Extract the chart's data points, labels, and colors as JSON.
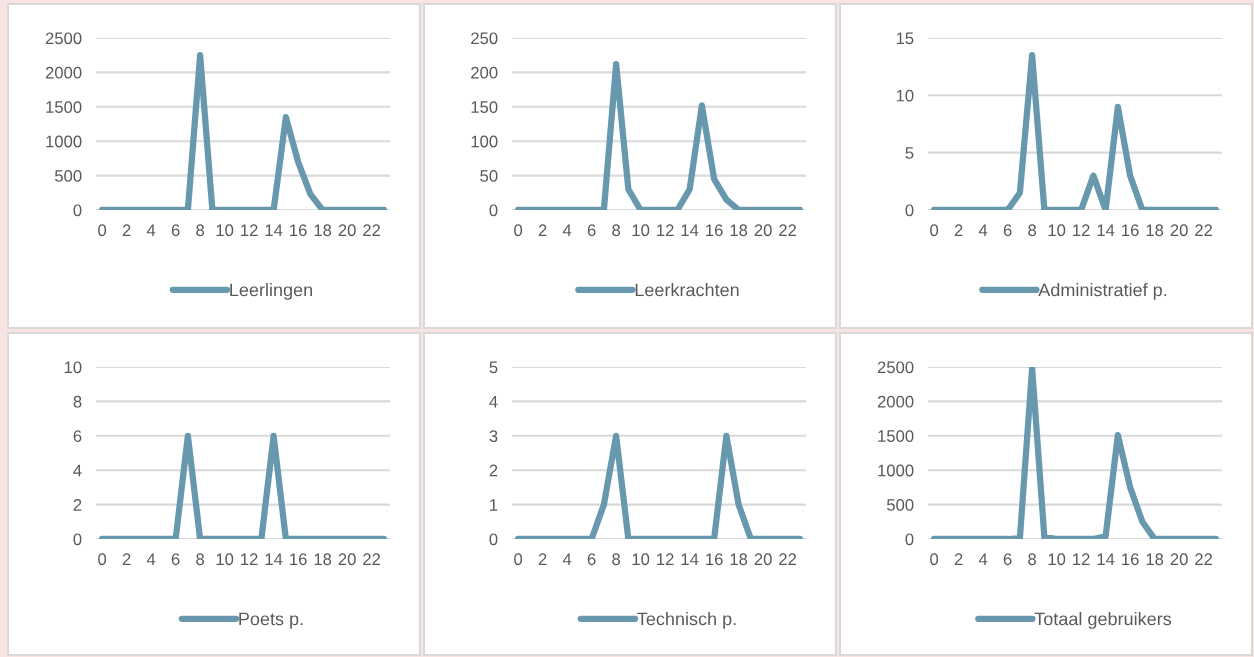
{
  "chart_data": [
    {
      "type": "line",
      "categories": [
        "0",
        null,
        "2",
        null,
        "4",
        null,
        "6",
        null,
        "8",
        null,
        "10",
        null,
        "12",
        null,
        "14",
        null,
        "16",
        null,
        "18",
        null,
        "20",
        null,
        "22",
        null
      ],
      "ylim": [
        0,
        2500
      ],
      "yticks": [
        0,
        500,
        1000,
        1500,
        2000,
        2500
      ],
      "grid": "y",
      "legend": "bottom",
      "series": [
        {
          "name": "Leerlingen",
          "color": "#6798ae",
          "values": [
            0,
            0,
            0,
            0,
            0,
            0,
            0,
            0,
            2250,
            0,
            0,
            0,
            0,
            0,
            0,
            1350,
            700,
            230,
            0,
            0,
            0,
            0,
            0,
            0
          ]
        }
      ]
    },
    {
      "type": "line",
      "categories": [
        "0",
        null,
        "2",
        null,
        "4",
        null,
        "6",
        null,
        "8",
        null,
        "10",
        null,
        "12",
        null,
        "14",
        null,
        "16",
        null,
        "18",
        null,
        "20",
        null,
        "22",
        null
      ],
      "ylim": [
        0,
        250
      ],
      "yticks": [
        0,
        50,
        100,
        150,
        200,
        250
      ],
      "grid": "y",
      "legend": "bottom",
      "series": [
        {
          "name": "Leerkrachten",
          "color": "#6798ae",
          "values": [
            0,
            0,
            0,
            0,
            0,
            0,
            0,
            0,
            212,
            30,
            0,
            0,
            0,
            0,
            30,
            152,
            45,
            15,
            0,
            0,
            0,
            0,
            0,
            0
          ]
        }
      ]
    },
    {
      "type": "line",
      "categories": [
        "0",
        null,
        "2",
        null,
        "4",
        null,
        "6",
        null,
        "8",
        null,
        "10",
        null,
        "12",
        null,
        "14",
        null,
        "16",
        null,
        "18",
        null,
        "20",
        null,
        "22",
        null
      ],
      "ylim": [
        0,
        15
      ],
      "yticks": [
        0,
        5,
        10,
        15
      ],
      "grid": "y",
      "legend": "bottom",
      "series": [
        {
          "name": "Administratief p.",
          "color": "#6798ae",
          "values": [
            0,
            0,
            0,
            0,
            0,
            0,
            0,
            1.5,
            13.5,
            0,
            0,
            0,
            0,
            3,
            0,
            9,
            3,
            0,
            0,
            0,
            0,
            0,
            0,
            0
          ]
        }
      ]
    },
    {
      "type": "line",
      "categories": [
        "0",
        null,
        "2",
        null,
        "4",
        null,
        "6",
        null,
        "8",
        null,
        "10",
        null,
        "12",
        null,
        "14",
        null,
        "16",
        null,
        "18",
        null,
        "20",
        null,
        "22",
        null
      ],
      "ylim": [
        0,
        10
      ],
      "yticks": [
        0,
        2,
        4,
        6,
        8,
        10
      ],
      "grid": "y",
      "legend": "bottom",
      "series": [
        {
          "name": "Poets p.",
          "color": "#6798ae",
          "values": [
            0,
            0,
            0,
            0,
            0,
            0,
            0,
            6,
            0,
            0,
            0,
            0,
            0,
            0,
            6,
            0,
            0,
            0,
            0,
            0,
            0,
            0,
            0,
            0
          ]
        }
      ]
    },
    {
      "type": "line",
      "categories": [
        "0",
        null,
        "2",
        null,
        "4",
        null,
        "6",
        null,
        "8",
        null,
        "10",
        null,
        "12",
        null,
        "14",
        null,
        "16",
        null,
        "18",
        null,
        "20",
        null,
        "22",
        null
      ],
      "ylim": [
        0,
        5
      ],
      "yticks": [
        0,
        1,
        2,
        3,
        4,
        5
      ],
      "grid": "y",
      "legend": "bottom",
      "series": [
        {
          "name": "Technisch p.",
          "color": "#6798ae",
          "values": [
            0,
            0,
            0,
            0,
            0,
            0,
            0,
            1,
            3,
            0,
            0,
            0,
            0,
            0,
            0,
            0,
            0,
            3,
            1,
            0,
            0,
            0,
            0,
            0
          ]
        }
      ]
    },
    {
      "type": "line",
      "categories": [
        "0",
        null,
        "2",
        null,
        "4",
        null,
        "6",
        null,
        "8",
        null,
        "10",
        null,
        "12",
        null,
        "14",
        null,
        "16",
        null,
        "18",
        null,
        "20",
        null,
        "22",
        null
      ],
      "ylim": [
        0,
        2500
      ],
      "yticks": [
        0,
        500,
        1000,
        1500,
        2000,
        2500
      ],
      "grid": "y",
      "legend": "bottom",
      "series": [
        {
          "name": "Totaal gebruikers",
          "color": "#6798ae",
          "values": [
            0,
            0,
            0,
            0,
            0,
            0,
            0,
            10,
            2480,
            30,
            0,
            0,
            0,
            0,
            40,
            1510,
            750,
            250,
            0,
            0,
            0,
            0,
            0,
            0
          ]
        }
      ]
    }
  ]
}
